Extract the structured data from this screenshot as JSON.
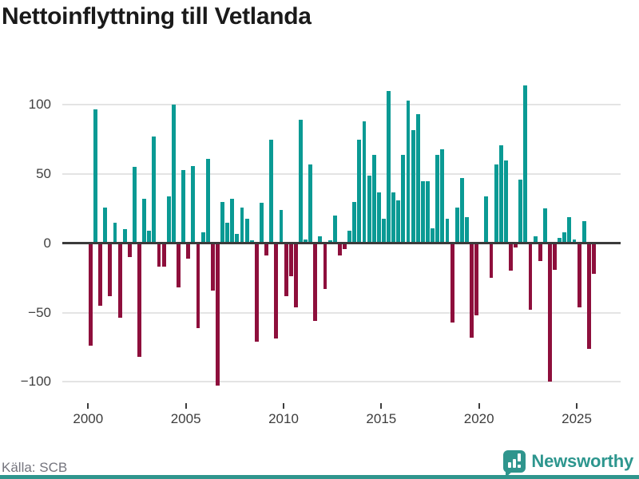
{
  "title": "Nettoinflyttning till Vetlanda",
  "footer": {
    "source": "Källa: SCB",
    "logo_text": "Newsworthy"
  },
  "colors": {
    "positive": "#0a9a94",
    "negative": "#8e0f3c",
    "grid": "#e4e4e4",
    "zero_line": "#3b3b3b",
    "title_text": "#1a1a1a",
    "tick_text": "#3d3d3d",
    "source_text": "#75757e",
    "brand_teal": "#2f958d",
    "background": "#ffffff"
  },
  "chart_data": {
    "type": "bar",
    "title": "Nettoinflyttning till Vetlanda",
    "x_interval": "quarter",
    "x_start": "2000Q1",
    "x_end": "2025Q4",
    "values": [
      -74,
      97,
      -45,
      26,
      -38,
      15,
      -54,
      10,
      -10,
      55,
      -82,
      32,
      9,
      77,
      -17,
      -17,
      34,
      100,
      -32,
      53,
      -11,
      56,
      -61,
      8,
      61,
      -34,
      -103,
      30,
      15,
      32,
      7,
      26,
      18,
      2,
      -71,
      29,
      -9,
      75,
      -69,
      24,
      -38,
      -24,
      -46,
      89,
      3,
      57,
      -56,
      5,
      -33,
      2,
      20,
      -9,
      -4,
      9,
      30,
      75,
      88,
      49,
      64,
      37,
      18,
      110,
      37,
      31,
      64,
      103,
      82,
      93,
      45,
      45,
      11,
      64,
      68,
      18,
      -57,
      26,
      47,
      19,
      -68,
      -52,
      0,
      34,
      -25,
      57,
      71,
      60,
      -20,
      -3,
      46,
      114,
      -48,
      5,
      -13,
      25,
      -100,
      -19,
      4,
      8,
      19,
      3,
      -46,
      16,
      -76,
      -22
    ],
    "positive_color": "#0a9a94",
    "negative_color": "#8e0f3c",
    "yticks": [
      100,
      50,
      0,
      -50,
      -100
    ],
    "ytick_labels": [
      "100",
      "50",
      "0",
      "−50",
      "−100"
    ],
    "xticks": [
      2000,
      2005,
      2010,
      2015,
      2020,
      2025
    ],
    "ylim": [
      -110,
      118
    ],
    "grid": "horizontal",
    "legend": "none",
    "source": "Källa: SCB"
  }
}
